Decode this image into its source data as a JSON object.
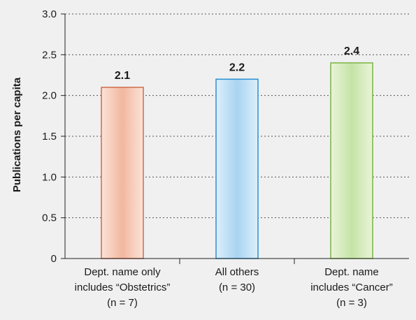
{
  "chart_data": {
    "type": "bar",
    "title": "",
    "xlabel": "",
    "ylabel": "Publications per capita",
    "ylim": [
      0,
      3.0
    ],
    "yticks": [
      "0",
      "0.5",
      "1.0",
      "1.5",
      "2.0",
      "2.5",
      "3.0"
    ],
    "grid": true,
    "categories": [
      {
        "lines": [
          "Dept. name only",
          "includes “Obstetrics”",
          "(n = 7)"
        ]
      },
      {
        "lines": [
          "All others",
          "(n = 30)"
        ]
      },
      {
        "lines": [
          "Dept. name",
          "includes “Cancer”",
          "(n = 3)"
        ]
      }
    ],
    "values": [
      2.1,
      2.2,
      2.4
    ],
    "value_labels": [
      "2.1",
      "2.2",
      "2.4"
    ],
    "colors": [
      {
        "fill_light": "#fbe3d8",
        "fill_dark": "#f2b79f",
        "stroke": "#d06a49"
      },
      {
        "fill_light": "#dceffb",
        "fill_dark": "#a9d4f1",
        "stroke": "#2a8fd0"
      },
      {
        "fill_light": "#e8f4d9",
        "fill_dark": "#c6e3a6",
        "stroke": "#7cb342"
      }
    ]
  }
}
